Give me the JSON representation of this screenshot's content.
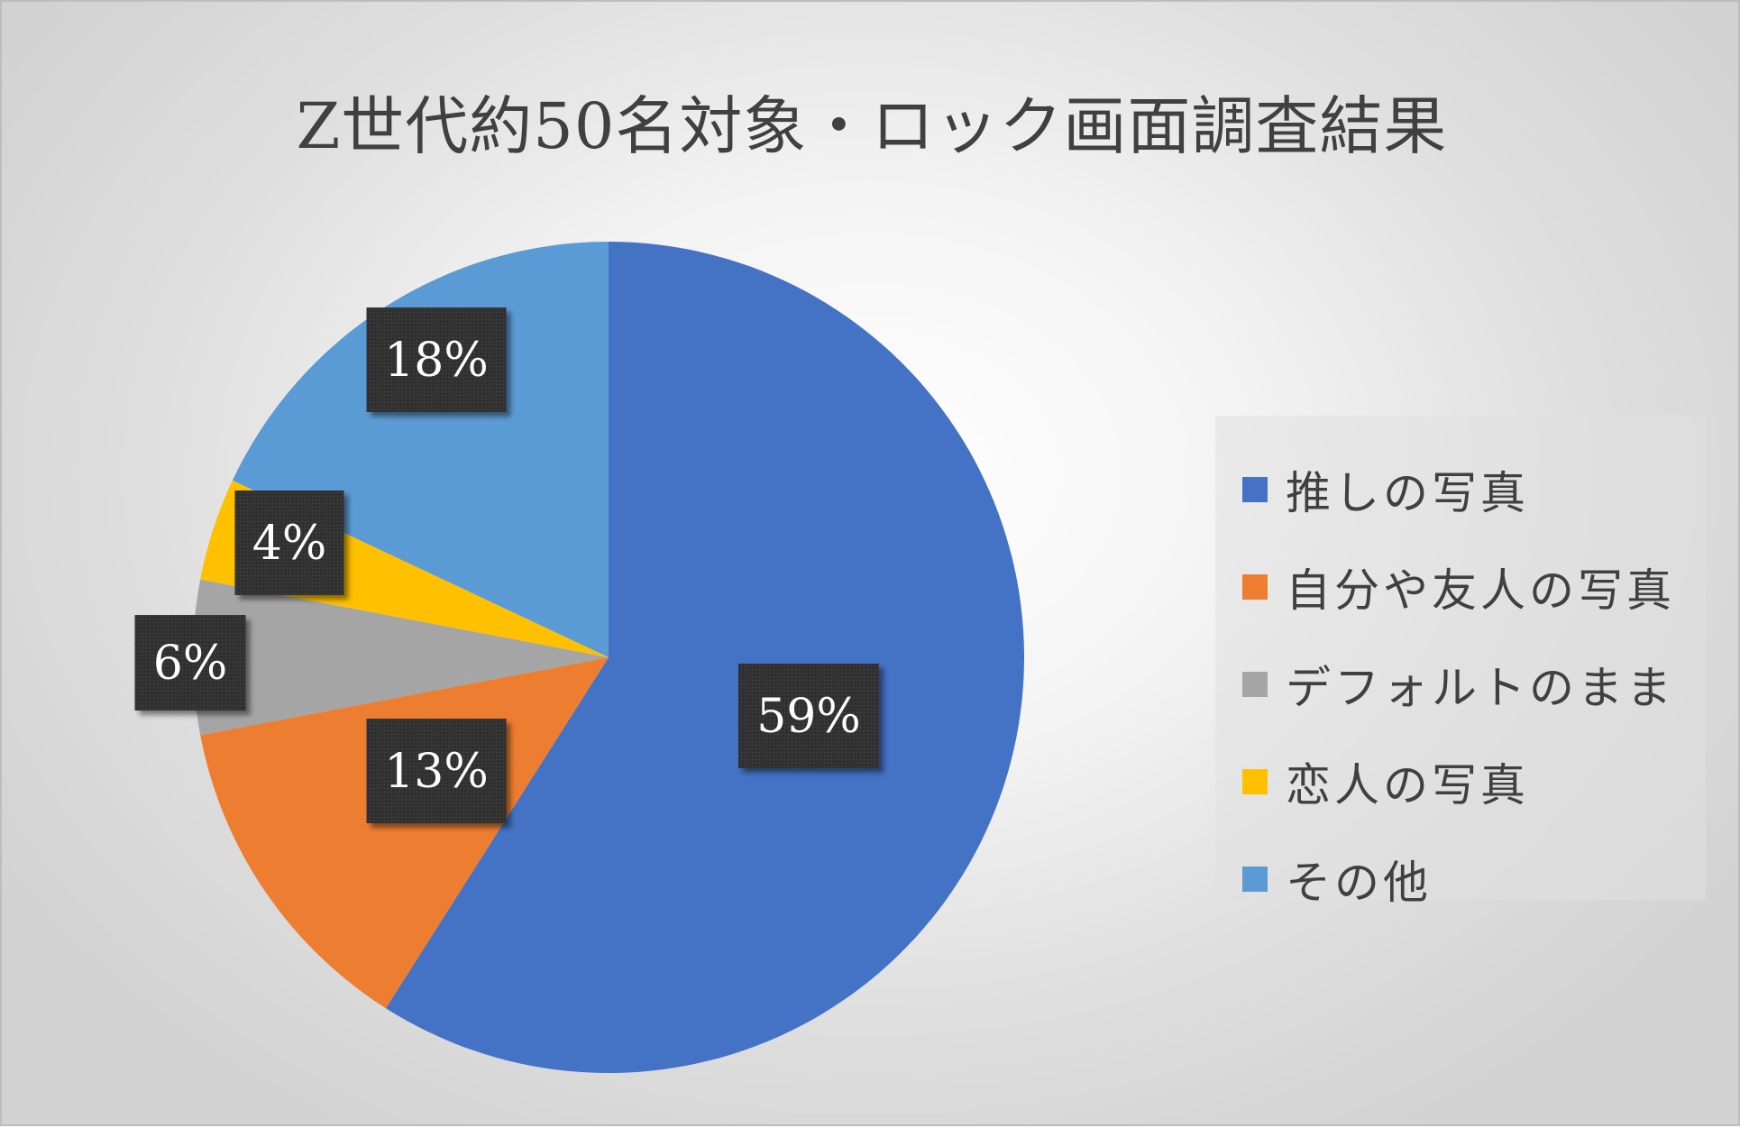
{
  "chart_data": {
    "type": "pie",
    "title": "Z世代約50名対象・ロック画面調査結果",
    "categories": [
      "推しの写真",
      "自分や友人の写真",
      "デフォルトのまま",
      "恋人の写真",
      "その他"
    ],
    "values": [
      59,
      13,
      6,
      4,
      18
    ],
    "data_labels": [
      "59%",
      "13%",
      "6%",
      "4%",
      "18%"
    ],
    "colors": [
      "#4472C4",
      "#ED7D31",
      "#A5A5A5",
      "#FFC000",
      "#5B9BD5"
    ],
    "legend_position": "right",
    "start_angle": "12 o'clock",
    "direction": "clockwise"
  }
}
